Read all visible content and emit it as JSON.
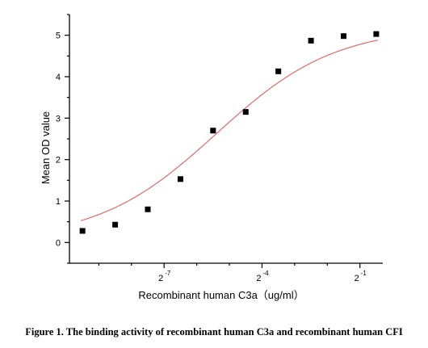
{
  "chart_data": {
    "type": "scatter",
    "x_scale": "log2",
    "xlabel": "Recombinant human  C3a（ug/ml）",
    "ylabel": "Mean OD value",
    "xlim_log2": [
      -9.9,
      -0.3
    ],
    "ylim": [
      -0.5,
      5.5
    ],
    "x_ticks": [
      {
        "base": "2",
        "exp": "-7",
        "value_log2": -7
      },
      {
        "base": "2",
        "exp": "-4",
        "value_log2": -4
      },
      {
        "base": "2",
        "exp": "-1",
        "value_log2": -1
      }
    ],
    "y_ticks": [
      "0",
      "1",
      "2",
      "3",
      "4",
      "5"
    ],
    "series": [
      {
        "x_log2": [
          -9.5,
          -8.5,
          -7.5,
          -6.5,
          -5.5,
          -4.5,
          -3.5,
          -2.5,
          -1.5,
          -0.5
        ],
        "y": [
          0.28,
          0.43,
          0.8,
          1.53,
          2.7,
          3.15,
          4.13,
          4.87,
          4.98,
          5.03
        ]
      }
    ],
    "fit_curve": {
      "model": "4PL",
      "bottom": 0.05,
      "top": 5.2,
      "midpoint_log2": -5.4,
      "hill": 0.55
    },
    "colors": {
      "points": "#000000",
      "curve": "#e06a6a",
      "axes": "#000000"
    }
  },
  "caption": "Figure 1. The binding activity of recombinant human C3a and recombinant human CFI"
}
